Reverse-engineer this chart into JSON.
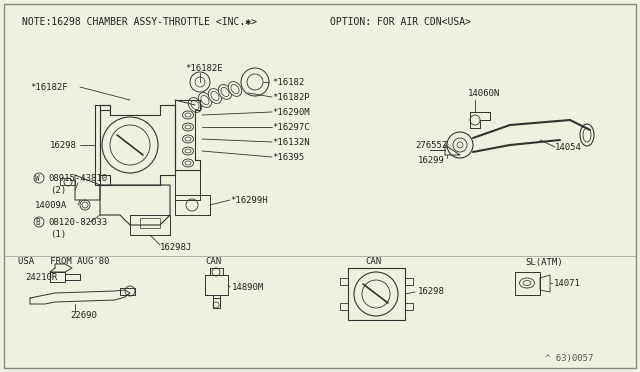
{
  "bg_color": "#f0f0e0",
  "border_color": "#666666",
  "line_color": "#333333",
  "title_note": "NOTE:16298 CHAMBER ASSY-THROTTLE <INC.✱>",
  "title_option": "OPTION: FOR AIR CDN<USA>",
  "part_number_ref": "^ 63:0057",
  "font_size_small": 6.5,
  "font_size_note": 7.0
}
